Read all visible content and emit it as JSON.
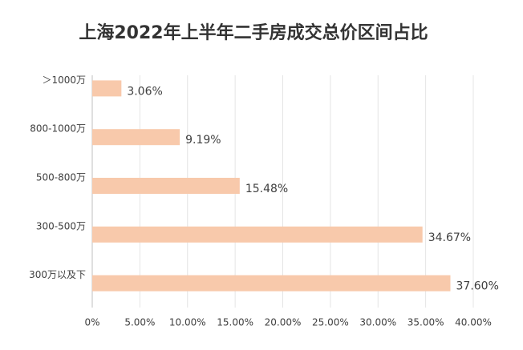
{
  "chart_data": {
    "type": "hbar",
    "title": "上海2022年上半年二手房成交总价区间占比",
    "categories": [
      "＞1000万",
      "800-1000万",
      "500-800万",
      "300-500万",
      "300万以及下"
    ],
    "values": [
      3.06,
      9.19,
      15.48,
      34.67,
      37.6
    ],
    "value_labels": [
      "3.06%",
      "9.19%",
      "15.48%",
      "34.67%",
      "37.60%"
    ],
    "color": "#f8c9ab",
    "xlim": [
      0,
      40
    ],
    "xticks": [
      {
        "value": 0,
        "label": "0%"
      },
      {
        "value": 5,
        "label": "5.00%"
      },
      {
        "value": 10,
        "label": "10.00%"
      },
      {
        "value": 15,
        "label": "15.00%"
      },
      {
        "value": 20,
        "label": "20.00%"
      },
      {
        "value": 25,
        "label": "25.00%"
      },
      {
        "value": 30,
        "label": "30.00%"
      },
      {
        "value": 35,
        "label": "35.00%"
      },
      {
        "value": 40,
        "label": "40.00%"
      }
    ],
    "grid": true
  }
}
